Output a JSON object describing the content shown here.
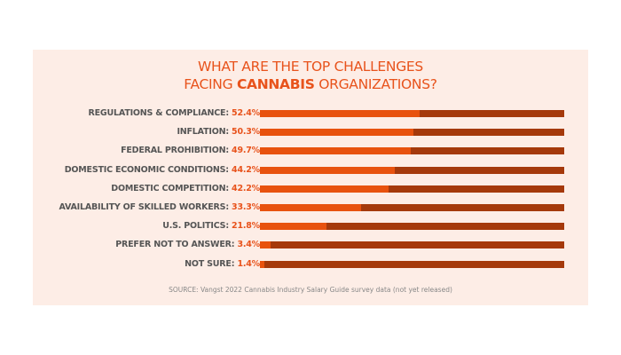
{
  "chart_data": {
    "type": "bar",
    "orientation": "horizontal",
    "title_parts": [
      "WHAT ARE THE TOP CHALLENGES",
      "FACING ",
      "CANNABIS",
      " ORGANIZATIONS?"
    ],
    "categories": [
      "REGULATIONS & COMPLIANCE:",
      "INFLATION:",
      "FEDERAL PROHIBITION:",
      "DOMESTIC ECONOMIC CONDITIONS:",
      "DOMESTIC COMPETITION:",
      "AVAILABILITY OF SKILLED WORKERS:",
      "U.S. POLITICS:",
      "PREFER NOT TO ANSWER:",
      "NOT SURE:"
    ],
    "values": [
      52.4,
      50.3,
      49.7,
      44.2,
      42.2,
      33.3,
      21.8,
      3.4,
      1.4
    ],
    "value_labels": [
      "52.4%",
      "50.3%",
      "49.7%",
      "44.2%",
      "42.2%",
      "33.3%",
      "21.8%",
      "3.4%",
      "1.4%"
    ],
    "xlim": [
      0,
      100
    ],
    "grid": false,
    "source": "SOURCE: Vangst 2022 Cannabis Industry Salary Guide survey data (not yet released)",
    "colors": {
      "fill": "#e8520e",
      "track": "#a5390b",
      "accent": "#e8531c",
      "background": "#fdede6"
    }
  }
}
